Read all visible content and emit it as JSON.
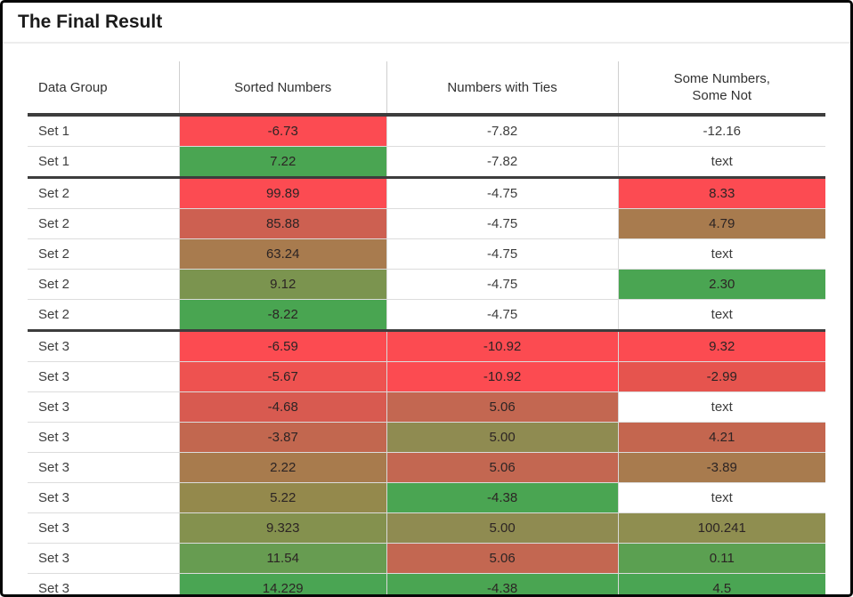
{
  "title": "The Final Result",
  "colors": {
    "frame": "#060606",
    "group_border": "#3d3d3d",
    "row_border": "#dcdcdc",
    "column_border": "#d9d9d9",
    "title_divider": "#ededed"
  },
  "table": {
    "columns": [
      "Data Group",
      "Sorted Numbers",
      "Numbers with Ties",
      "Some Numbers,\nSome Not"
    ],
    "rows": [
      {
        "group": "Set 1",
        "start": false,
        "cells": [
          {
            "v": "-6.73",
            "bg": "#fc4b52"
          },
          {
            "v": "-7.82",
            "bg": null
          },
          {
            "v": "-12.16",
            "bg": null
          }
        ]
      },
      {
        "group": "Set 1",
        "start": false,
        "cells": [
          {
            "v": "7.22",
            "bg": "#4aa552"
          },
          {
            "v": "-7.82",
            "bg": null
          },
          {
            "v": "text",
            "bg": null
          }
        ]
      },
      {
        "group": "Set 2",
        "start": true,
        "cells": [
          {
            "v": "99.89",
            "bg": "#fc4b52"
          },
          {
            "v": "-4.75",
            "bg": null
          },
          {
            "v": "8.33",
            "bg": "#fc4b52"
          }
        ]
      },
      {
        "group": "Set 2",
        "start": false,
        "cells": [
          {
            "v": "85.88",
            "bg": "#cd6051"
          },
          {
            "v": "-4.75",
            "bg": null
          },
          {
            "v": "4.79",
            "bg": "#a87b4e"
          }
        ]
      },
      {
        "group": "Set 2",
        "start": false,
        "cells": [
          {
            "v": "63.24",
            "bg": "#a87b4e"
          },
          {
            "v": "-4.75",
            "bg": null
          },
          {
            "v": "text",
            "bg": null
          }
        ]
      },
      {
        "group": "Set 2",
        "start": false,
        "cells": [
          {
            "v": "9.12",
            "bg": "#7b944f"
          },
          {
            "v": "-4.75",
            "bg": null
          },
          {
            "v": "2.30",
            "bg": "#4aa552"
          }
        ]
      },
      {
        "group": "Set 2",
        "start": false,
        "cells": [
          {
            "v": "-8.22",
            "bg": "#49a551"
          },
          {
            "v": "-4.75",
            "bg": null
          },
          {
            "v": "text",
            "bg": null
          }
        ]
      },
      {
        "group": "Set 3",
        "start": true,
        "cells": [
          {
            "v": "-6.59",
            "bg": "#fc4b51"
          },
          {
            "v": "-10.92",
            "bg": "#fc4b51"
          },
          {
            "v": "9.32",
            "bg": "#fc4b51"
          }
        ]
      },
      {
        "group": "Set 3",
        "start": false,
        "cells": [
          {
            "v": "-5.67",
            "bg": "#ee5250"
          },
          {
            "v": "-10.92",
            "bg": "#fc4b51"
          },
          {
            "v": "-2.99",
            "bg": "#e6544e"
          }
        ]
      },
      {
        "group": "Set 3",
        "start": false,
        "cells": [
          {
            "v": "-4.68",
            "bg": "#d85a50"
          },
          {
            "v": "5.06",
            "bg": "#c36751"
          },
          {
            "v": "text",
            "bg": null
          }
        ]
      },
      {
        "group": "Set 3",
        "start": false,
        "cells": [
          {
            "v": "-3.87",
            "bg": "#c2674f"
          },
          {
            "v": "5.00",
            "bg": "#8f8b51"
          },
          {
            "v": "4.21",
            "bg": "#c4664f"
          }
        ]
      },
      {
        "group": "Set 3",
        "start": false,
        "cells": [
          {
            "v": "2.22",
            "bg": "#a87b4d"
          },
          {
            "v": "5.06",
            "bg": "#c36751"
          },
          {
            "v": "-3.89",
            "bg": "#a87b4e"
          }
        ]
      },
      {
        "group": "Set 3",
        "start": false,
        "cells": [
          {
            "v": "5.22",
            "bg": "#94894c"
          },
          {
            "v": "-4.38",
            "bg": "#4aa552"
          },
          {
            "v": "text",
            "bg": null
          }
        ]
      },
      {
        "group": "Set 3",
        "start": false,
        "cells": [
          {
            "v": "9.323",
            "bg": "#84914e"
          },
          {
            "v": "5.00",
            "bg": "#8f8b51"
          },
          {
            "v": "100.241",
            "bg": "#8f8e50"
          }
        ]
      },
      {
        "group": "Set 3",
        "start": false,
        "cells": [
          {
            "v": "11.54",
            "bg": "#679c51"
          },
          {
            "v": "5.06",
            "bg": "#c36751"
          },
          {
            "v": "0.11",
            "bg": "#5ba051"
          }
        ]
      },
      {
        "group": "Set 3",
        "start": false,
        "cells": [
          {
            "v": "14.229",
            "bg": "#4aa553"
          },
          {
            "v": "-4.38",
            "bg": "#4aa552"
          },
          {
            "v": "4.5",
            "bg": "#4aa553"
          }
        ]
      }
    ]
  }
}
